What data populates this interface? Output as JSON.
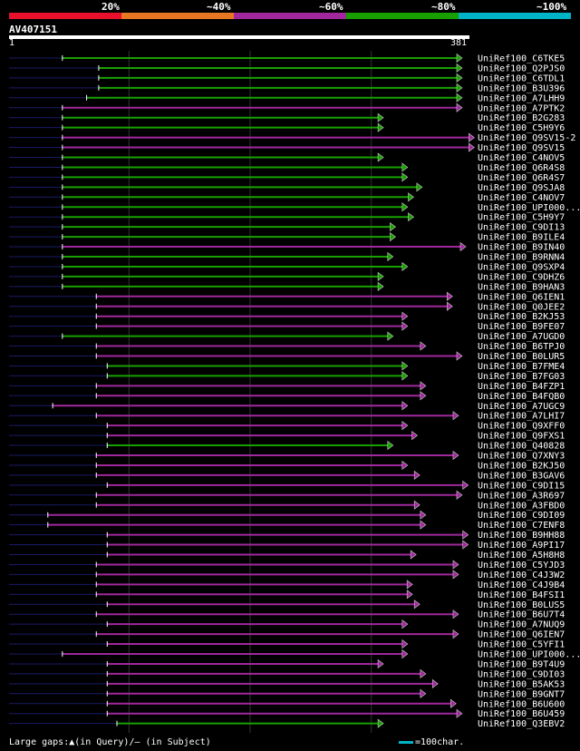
{
  "legend": {
    "labels": [
      "20%",
      "~40%",
      "~60%",
      "~80%",
      "~100%"
    ],
    "colors": [
      "#e8112d",
      "#e87722",
      "#a0289c",
      "#18a000",
      "#00b4c8"
    ]
  },
  "query": {
    "name": "AV407151",
    "start": "1",
    "end": "381"
  },
  "footer": {
    "gaps_text": "Large gaps:▲(in Query)/— (in Subject)",
    "scale_text": "=100char."
  },
  "chart_data": {
    "type": "alignment-overview",
    "query_length": 381,
    "hits": [
      {
        "id": "UniRef100_C6TKE5",
        "start": 45,
        "end": 375,
        "color": "green"
      },
      {
        "id": "UniRef100_Q2PJS0",
        "start": 75,
        "end": 375,
        "color": "green"
      },
      {
        "id": "UniRef100_C6TDL1",
        "start": 75,
        "end": 375,
        "color": "green"
      },
      {
        "id": "UniRef100_B3U396",
        "start": 75,
        "end": 375,
        "color": "green"
      },
      {
        "id": "UniRef100_A7LHH9",
        "start": 65,
        "end": 375,
        "color": "green"
      },
      {
        "id": "UniRef100_A7PTK2",
        "start": 45,
        "end": 375,
        "color": "magenta"
      },
      {
        "id": "UniRef100_B2G283",
        "start": 45,
        "end": 310,
        "color": "green"
      },
      {
        "id": "UniRef100_C5H9Y6",
        "start": 45,
        "end": 310,
        "color": "green"
      },
      {
        "id": "UniRef100_Q9SV15-2",
        "start": 45,
        "end": 385,
        "color": "magenta"
      },
      {
        "id": "UniRef100_Q9SV15",
        "start": 45,
        "end": 385,
        "color": "magenta"
      },
      {
        "id": "UniRef100_C4NOV5",
        "start": 45,
        "end": 310,
        "color": "green"
      },
      {
        "id": "UniRef100_Q6R4S8",
        "start": 45,
        "end": 330,
        "color": "green"
      },
      {
        "id": "UniRef100_Q6R4S7",
        "start": 45,
        "end": 330,
        "color": "green"
      },
      {
        "id": "UniRef100_Q9SJA8",
        "start": 45,
        "end": 342,
        "color": "green"
      },
      {
        "id": "UniRef100_C4NOV7",
        "start": 45,
        "end": 335,
        "color": "green"
      },
      {
        "id": "UniRef100_UPI000...",
        "start": 45,
        "end": 330,
        "color": "green"
      },
      {
        "id": "UniRef100_C5H9Y7",
        "start": 45,
        "end": 335,
        "color": "green"
      },
      {
        "id": "UniRef100_C9DI13",
        "start": 45,
        "end": 320,
        "color": "green"
      },
      {
        "id": "UniRef100_B9ILE4",
        "start": 45,
        "end": 320,
        "color": "green"
      },
      {
        "id": "UniRef100_B9IN40",
        "start": 45,
        "end": 378,
        "color": "magenta"
      },
      {
        "id": "UniRef100_B9RNN4",
        "start": 45,
        "end": 318,
        "color": "green"
      },
      {
        "id": "UniRef100_Q9SXP4",
        "start": 45,
        "end": 330,
        "color": "green"
      },
      {
        "id": "UniRef100_C9DHZ6",
        "start": 45,
        "end": 310,
        "color": "green"
      },
      {
        "id": "UniRef100_B9HAN3",
        "start": 45,
        "end": 310,
        "color": "green"
      },
      {
        "id": "UniRef100_Q6IEN1",
        "start": 73,
        "end": 367,
        "color": "magenta"
      },
      {
        "id": "UniRef100_Q0JEE2",
        "start": 73,
        "end": 367,
        "color": "magenta"
      },
      {
        "id": "UniRef100_B2KJ53",
        "start": 73,
        "end": 330,
        "color": "magenta"
      },
      {
        "id": "UniRef100_B9FE07",
        "start": 73,
        "end": 330,
        "color": "magenta"
      },
      {
        "id": "UniRef100_A7UGD0",
        "start": 45,
        "end": 318,
        "color": "green"
      },
      {
        "id": "UniRef100_B6TPJ0",
        "start": 73,
        "end": 345,
        "color": "magenta"
      },
      {
        "id": "UniRef100_B0LUR5",
        "start": 73,
        "end": 375,
        "color": "magenta"
      },
      {
        "id": "UniRef100_B7FME4",
        "start": 82,
        "end": 330,
        "color": "green"
      },
      {
        "id": "UniRef100_B7FG03",
        "start": 82,
        "end": 330,
        "color": "green"
      },
      {
        "id": "UniRef100_B4FZP1",
        "start": 73,
        "end": 345,
        "color": "magenta"
      },
      {
        "id": "UniRef100_B4FQB0",
        "start": 73,
        "end": 345,
        "color": "magenta"
      },
      {
        "id": "UniRef100_A7UGC9",
        "start": 37,
        "end": 330,
        "color": "magenta"
      },
      {
        "id": "UniRef100_A7LHI7",
        "start": 73,
        "end": 372,
        "color": "magenta"
      },
      {
        "id": "UniRef100_Q9XFF0",
        "start": 82,
        "end": 330,
        "color": "magenta"
      },
      {
        "id": "UniRef100_Q9FXS1",
        "start": 82,
        "end": 338,
        "color": "magenta"
      },
      {
        "id": "UniRef100_Q40828",
        "start": 82,
        "end": 318,
        "color": "green"
      },
      {
        "id": "UniRef100_Q7XNY3",
        "start": 73,
        "end": 372,
        "color": "magenta"
      },
      {
        "id": "UniRef100_B2KJ50",
        "start": 73,
        "end": 330,
        "color": "magenta"
      },
      {
        "id": "UniRef100_B3GAV6",
        "start": 73,
        "end": 340,
        "color": "magenta"
      },
      {
        "id": "UniRef100_C9DI15",
        "start": 82,
        "end": 380,
        "color": "magenta"
      },
      {
        "id": "UniRef100_A3R697",
        "start": 73,
        "end": 375,
        "color": "magenta"
      },
      {
        "id": "UniRef100_A3FBD0",
        "start": 73,
        "end": 340,
        "color": "magenta"
      },
      {
        "id": "UniRef100_C9DI09",
        "start": 33,
        "end": 345,
        "color": "magenta"
      },
      {
        "id": "UniRef100_C7ENF8",
        "start": 33,
        "end": 345,
        "color": "magenta"
      },
      {
        "id": "UniRef100_B9HH88",
        "start": 82,
        "end": 380,
        "color": "magenta"
      },
      {
        "id": "UniRef100_A9PI17",
        "start": 82,
        "end": 380,
        "color": "magenta"
      },
      {
        "id": "UniRef100_A5H8H8",
        "start": 82,
        "end": 337,
        "color": "magenta"
      },
      {
        "id": "UniRef100_C5YJD3",
        "start": 73,
        "end": 372,
        "color": "magenta"
      },
      {
        "id": "UniRef100_C4J3W2",
        "start": 73,
        "end": 372,
        "color": "magenta"
      },
      {
        "id": "UniRef100_C4J9B4",
        "start": 73,
        "end": 334,
        "color": "magenta"
      },
      {
        "id": "UniRef100_B4FSI1",
        "start": 73,
        "end": 334,
        "color": "magenta"
      },
      {
        "id": "UniRef100_B0LUS5",
        "start": 82,
        "end": 340,
        "color": "magenta"
      },
      {
        "id": "UniRef100_B6U7T4",
        "start": 73,
        "end": 372,
        "color": "magenta"
      },
      {
        "id": "UniRef100_A7NUQ9",
        "start": 82,
        "end": 330,
        "color": "magenta"
      },
      {
        "id": "UniRef100_Q6IEN7",
        "start": 73,
        "end": 372,
        "color": "magenta"
      },
      {
        "id": "UniRef100_C5YFI1",
        "start": 82,
        "end": 330,
        "color": "magenta"
      },
      {
        "id": "UniRef100_UPI000...",
        "start": 45,
        "end": 330,
        "color": "magenta"
      },
      {
        "id": "UniRef100_B9T4U9",
        "start": 82,
        "end": 310,
        "color": "magenta"
      },
      {
        "id": "UniRef100_C9DI03",
        "start": 82,
        "end": 345,
        "color": "magenta"
      },
      {
        "id": "UniRef100_B5AK53",
        "start": 82,
        "end": 355,
        "color": "magenta"
      },
      {
        "id": "UniRef100_B9GNT7",
        "start": 82,
        "end": 345,
        "color": "magenta"
      },
      {
        "id": "UniRef100_B6U600",
        "start": 82,
        "end": 370,
        "color": "magenta"
      },
      {
        "id": "UniRef100_B6U459",
        "start": 82,
        "end": 375,
        "color": "magenta"
      },
      {
        "id": "UniRef100_Q3EBV2",
        "start": 90,
        "end": 310,
        "color": "green"
      }
    ]
  }
}
